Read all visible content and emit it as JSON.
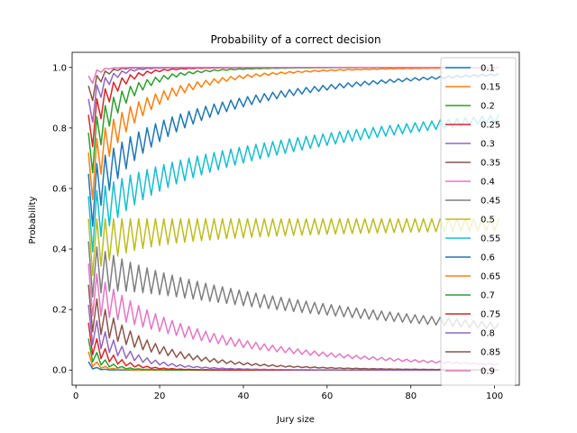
{
  "chart_data": {
    "type": "line",
    "title": "Probability of a correct decision",
    "xlabel": "Jury size",
    "ylabel": "Probability",
    "xlim": [
      -0.9,
      105.9
    ],
    "ylim": [
      -0.05,
      1.05
    ],
    "xticks": [
      0,
      20,
      40,
      60,
      80,
      100
    ],
    "yticks": [
      0.0,
      0.2,
      0.4,
      0.6,
      0.8,
      1.0
    ],
    "xtick_labels": [
      "0",
      "20",
      "40",
      "60",
      "80",
      "100"
    ],
    "ytick_labels": [
      "0.0",
      "0.2",
      "0.4",
      "0.6",
      "0.8",
      "1.0"
    ],
    "grid": false,
    "legend_position": "right",
    "x_range": [
      3,
      101
    ],
    "series": [
      {
        "name": "0.1",
        "color": "#1f77b4",
        "p": 0.1
      },
      {
        "name": "0.15",
        "color": "#ff7f0e",
        "p": 0.15
      },
      {
        "name": "0.2",
        "color": "#2ca02c",
        "p": 0.2
      },
      {
        "name": "0.25",
        "color": "#d62728",
        "p": 0.25
      },
      {
        "name": "0.3",
        "color": "#9467bd",
        "p": 0.3
      },
      {
        "name": "0.35",
        "color": "#8c564b",
        "p": 0.35
      },
      {
        "name": "0.4",
        "color": "#e377c2",
        "p": 0.4
      },
      {
        "name": "0.45",
        "color": "#7f7f7f",
        "p": 0.45
      },
      {
        "name": "0.5",
        "color": "#bcbd22",
        "p": 0.5
      },
      {
        "name": "0.55",
        "color": "#17becf",
        "p": 0.55
      },
      {
        "name": "0.6",
        "color": "#1f77b4",
        "p": 0.6
      },
      {
        "name": "0.65",
        "color": "#ff7f0e",
        "p": 0.65
      },
      {
        "name": "0.7",
        "color": "#2ca02c",
        "p": 0.7
      },
      {
        "name": "0.75",
        "color": "#d62728",
        "p": 0.75
      },
      {
        "name": "0.8",
        "color": "#9467bd",
        "p": 0.8
      },
      {
        "name": "0.85",
        "color": "#8c564b",
        "p": 0.85
      },
      {
        "name": "0.9",
        "color": "#e377c2",
        "p": 0.9
      }
    ]
  }
}
